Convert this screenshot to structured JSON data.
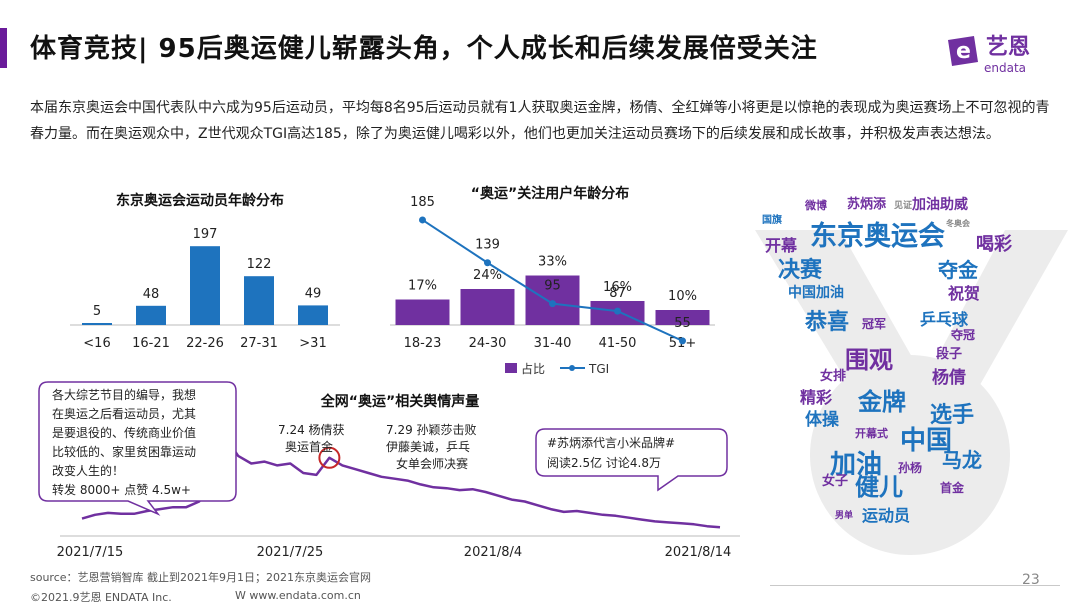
{
  "header": {
    "title": "体育竞技| 95后奥运健儿崭露头角，个人成长和后续发展倍受关注",
    "logo_text": "艺恩",
    "logo_subtext": "endata",
    "logo_mark": "e"
  },
  "intro": "本届东京奥运会中国代表队中六成为95后运动员，平均每8名95后运动员就有1人获取奥运金牌，杨倩、全红婵等小将更是以惊艳的表现成为奥运赛场上不可忽视的青春力量。而在奥运观众中，Z世代观众TGI高达185，除了为奥运健儿喝彩以外，他们也更加关注运动员赛场下的后续发展和成长故事，并积极发声表达想法。",
  "colors": {
    "accent": "#6a1b9a",
    "blue": "#1e73be",
    "purple": "#7030a0",
    "grey": "#888888"
  },
  "chart_data": [
    {
      "type": "bar",
      "title": "东京奥运会运动员年龄分布",
      "categories": [
        "<16",
        "16-21",
        "22-26",
        "27-31",
        ">31"
      ],
      "values": [
        5,
        48,
        197,
        122,
        49
      ],
      "color": "#1e73be"
    },
    {
      "type": "bar",
      "title": "“奥运”关注用户年龄分布",
      "categories": [
        "18-23",
        "24-30",
        "31-40",
        "41-50",
        "51+"
      ],
      "series": [
        {
          "name": "占比",
          "type": "bar",
          "values": [
            17,
            24,
            33,
            16,
            10
          ],
          "labels": [
            "17%",
            "24%",
            "33%",
            "16%",
            "10%"
          ],
          "color": "#7030a0"
        },
        {
          "name": "TGI",
          "type": "line",
          "values": [
            185,
            139,
            95,
            87,
            55
          ],
          "color": "#1e73be"
        }
      ],
      "legend": "bottom"
    },
    {
      "type": "line",
      "title": "全网“奥运”相关舆情声量",
      "x_ticks": [
        "2021/7/15",
        "2021/7/25",
        "2021/8/4",
        "2021/8/14"
      ],
      "values": [
        12,
        16,
        18,
        17,
        17,
        20,
        22,
        24,
        24,
        30,
        60,
        98,
        78,
        70,
        72,
        68,
        70,
        60,
        58,
        76,
        68,
        64,
        60,
        56,
        54,
        52,
        48,
        45,
        44,
        42,
        43,
        40,
        36,
        32,
        30,
        26,
        22,
        19,
        20,
        18,
        16,
        15,
        13,
        11,
        9,
        8,
        7,
        6,
        4,
        3
      ],
      "color": "#7030a0",
      "annotations": [
        {
          "text": "7.24 杨倩获 奥运首金",
          "line1": "7.24 杨倩获",
          "line2": "奥运首金"
        },
        {
          "text": "7.29 孙颖莎击败 伊藤美诚，乒乓 女单会师决赛",
          "line1": "7.29 孙颖莎击败",
          "line2": "伊藤美诚，乒乓",
          "line3": "女单会师决赛"
        }
      ],
      "callouts": [
        {
          "lines": [
            "各大综艺节目的编导，我想",
            "在奥运之后看运动员，尤其",
            "是要退役的、传统商业价值",
            "比较低的、家里贫困靠运动",
            "改变人生的！",
            "转发 8000+ 点赞 4.5w+"
          ]
        },
        {
          "lines": [
            "#苏炳添代言小米品牌#",
            "阅读2.5亿  讨论4.8万"
          ]
        }
      ]
    }
  ],
  "word_cloud": [
    {
      "text": "微博",
      "size": 11,
      "color": "#7030a0"
    },
    {
      "text": "苏炳添",
      "size": 13,
      "color": "#7030a0"
    },
    {
      "text": "见证",
      "size": 9,
      "color": "#888888"
    },
    {
      "text": "加油助威",
      "size": 14,
      "color": "#7030a0"
    },
    {
      "text": "国旗",
      "size": 10,
      "color": "#1e73be"
    },
    {
      "text": "东京奥运会",
      "size": 27,
      "color": "#1e73be"
    },
    {
      "text": "冬奥会",
      "size": 8,
      "color": "#888888"
    },
    {
      "text": "开幕",
      "size": 16,
      "color": "#7030a0"
    },
    {
      "text": "喝彩",
      "size": 18,
      "color": "#7030a0"
    },
    {
      "text": "决赛",
      "size": 22,
      "color": "#1e73be"
    },
    {
      "text": "夺金",
      "size": 20,
      "color": "#1e73be"
    },
    {
      "text": "中国加油",
      "size": 14,
      "color": "#1e73be"
    },
    {
      "text": "祝贺",
      "size": 16,
      "color": "#7030a0"
    },
    {
      "text": "恭喜",
      "size": 22,
      "color": "#1e73be"
    },
    {
      "text": "乒乓球",
      "size": 16,
      "color": "#1e73be"
    },
    {
      "text": "冠军",
      "size": 12,
      "color": "#7030a0"
    },
    {
      "text": "夺冠",
      "size": 12,
      "color": "#7030a0"
    },
    {
      "text": "围观",
      "size": 24,
      "color": "#7030a0"
    },
    {
      "text": "段子",
      "size": 13,
      "color": "#7030a0"
    },
    {
      "text": "女排",
      "size": 13,
      "color": "#7030a0"
    },
    {
      "text": "杨倩",
      "size": 17,
      "color": "#7030a0"
    },
    {
      "text": "精彩",
      "size": 16,
      "color": "#7030a0"
    },
    {
      "text": "金牌",
      "size": 24,
      "color": "#1e73be"
    },
    {
      "text": "体操",
      "size": 17,
      "color": "#1e73be"
    },
    {
      "text": "选手",
      "size": 22,
      "color": "#1e73be"
    },
    {
      "text": "开幕式",
      "size": 11,
      "color": "#7030a0"
    },
    {
      "text": "中国",
      "size": 26,
      "color": "#1e73be"
    },
    {
      "text": "加油",
      "size": 26,
      "color": "#1e73be"
    },
    {
      "text": "孙杨",
      "size": 12,
      "color": "#7030a0"
    },
    {
      "text": "马龙",
      "size": 20,
      "color": "#1e73be"
    },
    {
      "text": "女子",
      "size": 13,
      "color": "#7030a0"
    },
    {
      "text": "健儿",
      "size": 24,
      "color": "#1e73be"
    },
    {
      "text": "首金",
      "size": 12,
      "color": "#7030a0"
    },
    {
      "text": "运动员",
      "size": 16,
      "color": "#1e73be"
    },
    {
      "text": "男单",
      "size": 9,
      "color": "#7030a0"
    }
  ]
}
